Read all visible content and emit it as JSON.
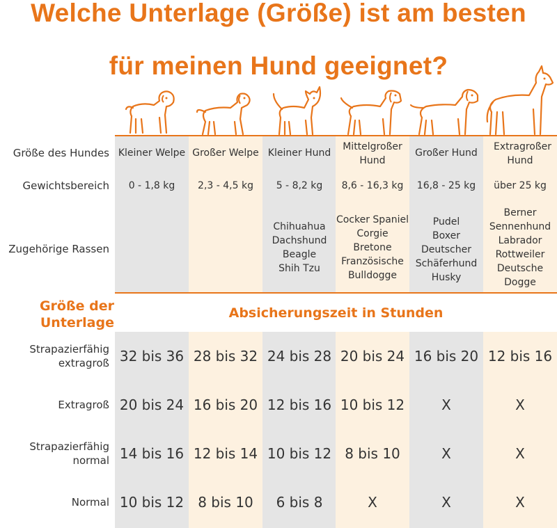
{
  "title": {
    "line1": "Welche Unterlage (Größe) ist am besten",
    "line2": "für meinen Hund geeignet?"
  },
  "colors": {
    "accent": "#E8751A",
    "gray": "#E5E5E5",
    "beige": "#FDF1E0",
    "text": "#333333"
  },
  "dog_icons": [
    "small-puppy-icon",
    "large-puppy-icon",
    "small-dog-icon",
    "medium-dog-icon",
    "large-dog-icon",
    "extra-large-dog-icon"
  ],
  "row_labels": {
    "size": "Größe des Hundes",
    "weight": "Gewichtsbereich",
    "breeds": "Zugehörige Rassen"
  },
  "columns": [
    {
      "size": "Kleiner Welpe",
      "weight": "0 - 1,8 kg",
      "breeds": []
    },
    {
      "size": "Großer Welpe",
      "weight": "2,3 - 4,5 kg",
      "breeds": []
    },
    {
      "size": "Kleiner Hund",
      "weight": "5 - 8,2 kg",
      "breeds": [
        "Chihuahua",
        "Dachshund",
        "Beagle",
        "Shih Tzu"
      ]
    },
    {
      "size": "Mittelgroßer Hund",
      "weight": "8,6 - 16,3 kg",
      "breeds": [
        "Cocker Spaniel",
        "Corgie",
        "Bretone",
        "Französische",
        "Bulldogge"
      ]
    },
    {
      "size": "Großer Hund",
      "weight": "16,8 - 25 kg",
      "breeds": [
        "Pudel",
        "Boxer",
        "Deutscher",
        "Schäferhund",
        "Husky"
      ]
    },
    {
      "size": "Extragroßer Hund",
      "weight": "über 25 kg",
      "breeds": [
        "Berner",
        "Sennenhund",
        "Labrador",
        "Rottweiler",
        "Deutsche",
        "Dogge"
      ]
    }
  ],
  "pad_header": {
    "line1": "Größe der",
    "line2": "Unterlage"
  },
  "hours_header": "Absicherungszeit in Stunden",
  "pad_rows": [
    {
      "label": [
        "Strapazierfähig",
        "extragroß"
      ],
      "values": [
        "32 bis 36",
        "28 bis 32",
        "24 bis 28",
        "20 bis 24",
        "16 bis 20",
        "12 bis 16"
      ]
    },
    {
      "label": [
        "Extragroß"
      ],
      "values": [
        "20 bis 24",
        "16 bis 20",
        "12 bis 16",
        "10 bis 12",
        "X",
        "X"
      ]
    },
    {
      "label": [
        "Strapazierfähig",
        "normal"
      ],
      "values": [
        "14 bis 16",
        "12 bis 14",
        "10 bis 12",
        "8 bis 10",
        "X",
        "X"
      ]
    },
    {
      "label": [
        "Normal"
      ],
      "values": [
        "10 bis 12",
        "8 bis 10",
        "6 bis 8",
        "X",
        "X",
        "X"
      ]
    }
  ]
}
